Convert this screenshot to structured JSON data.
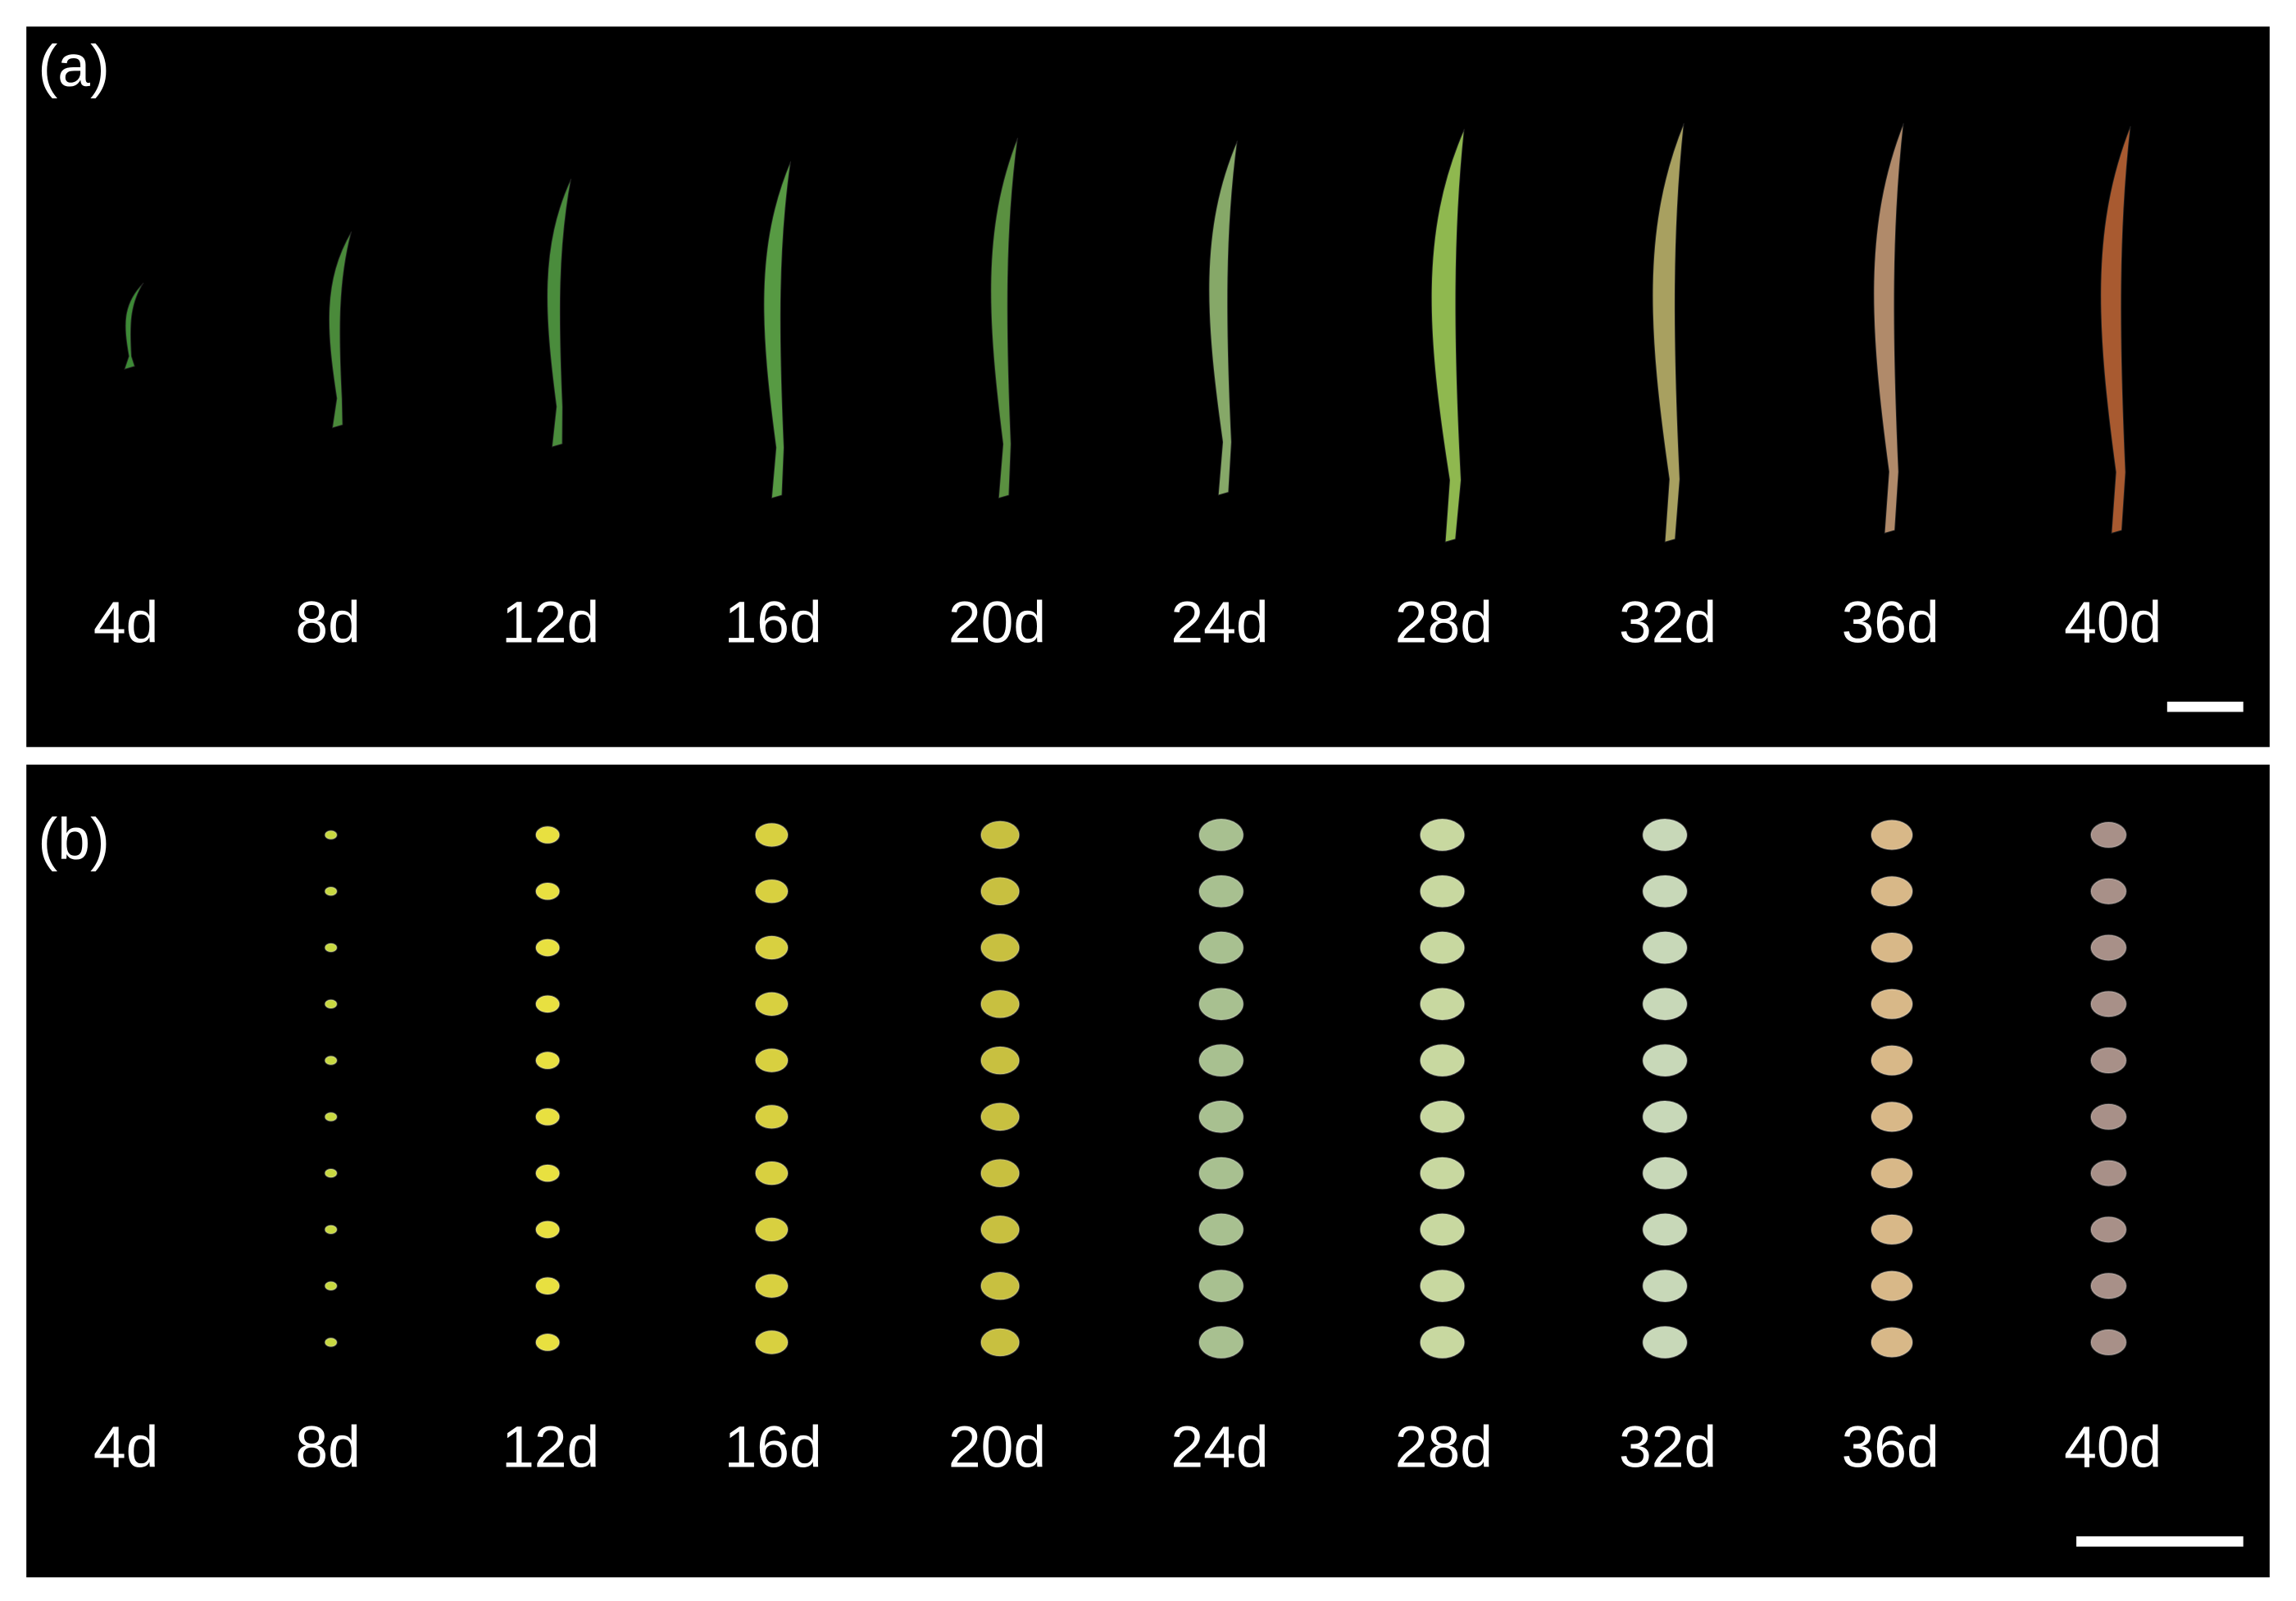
{
  "panels": [
    {
      "label": "(a)",
      "days": [
        "4d",
        "8d",
        "12d",
        "16d",
        "20d",
        "24d",
        "28d",
        "32d",
        "36d",
        "40d"
      ]
    },
    {
      "label": "(b)",
      "days": [
        "4d",
        "8d",
        "12d",
        "16d",
        "20d",
        "24d",
        "28d",
        "32d",
        "36d",
        "40d"
      ]
    }
  ]
}
